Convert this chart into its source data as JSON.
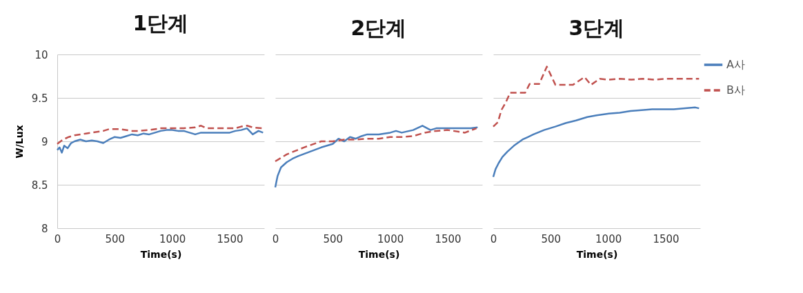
{
  "chart_data": [
    {
      "type": "line",
      "title": "1단계",
      "xlabel": "Time(s)",
      "ylabel": "W/Lux",
      "xlim": [
        0,
        1800
      ],
      "xticks": [
        0,
        500,
        1000,
        1500
      ],
      "ylim": [
        8,
        10
      ],
      "yticks": [
        8,
        8.5,
        9,
        9.5,
        10
      ],
      "grid": "y",
      "series": [
        {
          "color": "#4a7ebb",
          "line_style": "solid",
          "x": [
            0,
            20,
            40,
            60,
            90,
            120,
            150,
            200,
            250,
            300,
            350,
            400,
            450,
            500,
            550,
            600,
            650,
            700,
            750,
            800,
            850,
            900,
            950,
            1000,
            1050,
            1100,
            1150,
            1200,
            1250,
            1300,
            1400,
            1500,
            1550,
            1600,
            1650,
            1700,
            1750,
            1790
          ],
          "values": [
            8.9,
            8.93,
            8.87,
            8.95,
            8.92,
            8.98,
            9.0,
            9.02,
            9.0,
            9.01,
            9.0,
            8.98,
            9.02,
            9.05,
            9.04,
            9.06,
            9.08,
            9.07,
            9.09,
            9.08,
            9.1,
            9.12,
            9.13,
            9.13,
            9.12,
            9.12,
            9.1,
            9.08,
            9.1,
            9.1,
            9.1,
            9.1,
            9.12,
            9.13,
            9.15,
            9.08,
            9.12,
            9.1
          ]
        },
        {
          "color": "#c0504d",
          "line_style": "dashed",
          "x": [
            0,
            50,
            100,
            150,
            200,
            250,
            300,
            400,
            450,
            550,
            650,
            700,
            800,
            900,
            1000,
            1100,
            1200,
            1250,
            1300,
            1400,
            1500,
            1550,
            1600,
            1650,
            1700,
            1790
          ],
          "values": [
            8.97,
            9.02,
            9.05,
            9.07,
            9.08,
            9.09,
            9.1,
            9.12,
            9.14,
            9.14,
            9.12,
            9.12,
            9.13,
            9.15,
            9.15,
            9.15,
            9.16,
            9.18,
            9.15,
            9.15,
            9.15,
            9.15,
            9.17,
            9.18,
            9.16,
            9.15
          ]
        }
      ]
    },
    {
      "type": "line",
      "title": "2단계",
      "xlabel": "Time(s)",
      "xlim": [
        0,
        1800
      ],
      "xticks": [
        0,
        500,
        1000,
        1500
      ],
      "ylim": [
        8,
        10
      ],
      "yticks": [
        8,
        8.5,
        9,
        9.5,
        10
      ],
      "grid": "y",
      "tick_labels": "x",
      "series": [
        {
          "color": "#4a7ebb",
          "line_style": "solid",
          "x": [
            0,
            20,
            50,
            100,
            150,
            200,
            300,
            400,
            450,
            500,
            550,
            600,
            650,
            700,
            750,
            800,
            900,
            1000,
            1050,
            1100,
            1200,
            1280,
            1350,
            1400,
            1500,
            1600,
            1700,
            1760
          ],
          "values": [
            8.47,
            8.6,
            8.7,
            8.76,
            8.8,
            8.83,
            8.88,
            8.93,
            8.95,
            8.97,
            9.03,
            9.0,
            9.05,
            9.03,
            9.06,
            9.08,
            9.08,
            9.1,
            9.12,
            9.1,
            9.13,
            9.18,
            9.13,
            9.15,
            9.15,
            9.15,
            9.15,
            9.16
          ]
        },
        {
          "color": "#c0504d",
          "line_style": "dashed",
          "x": [
            0,
            100,
            250,
            400,
            500,
            600,
            700,
            800,
            900,
            1000,
            1100,
            1200,
            1250,
            1300,
            1400,
            1500,
            1550,
            1650,
            1750
          ],
          "values": [
            8.77,
            8.85,
            8.93,
            9.0,
            9.0,
            9.02,
            9.02,
            9.03,
            9.03,
            9.05,
            9.05,
            9.06,
            9.08,
            9.1,
            9.12,
            9.13,
            9.12,
            9.1,
            9.15
          ]
        }
      ]
    },
    {
      "type": "line",
      "title": "3단계",
      "xlabel": "Time(s)",
      "xlim": [
        0,
        1800
      ],
      "xticks": [
        0,
        500,
        1000,
        1500
      ],
      "ylim": [
        8,
        10
      ],
      "yticks": [
        8,
        8.5,
        9,
        9.5,
        10
      ],
      "grid": "y",
      "tick_labels": "x",
      "legend": "right",
      "series": [
        {
          "name": "A사",
          "color": "#4a7ebb",
          "line_style": "solid",
          "x": [
            0,
            20,
            47,
            80,
            122,
            180,
            254,
            350,
            442,
            540,
            630,
            720,
            818,
            900,
            1006,
            1100,
            1194,
            1290,
            1382,
            1480,
            1570,
            1670,
            1758,
            1790
          ],
          "values": [
            8.59,
            8.68,
            8.75,
            8.82,
            8.88,
            8.95,
            9.02,
            9.08,
            9.13,
            9.17,
            9.21,
            9.24,
            9.28,
            9.3,
            9.32,
            9.33,
            9.35,
            9.36,
            9.37,
            9.37,
            9.37,
            9.38,
            9.39,
            9.38
          ]
        },
        {
          "name": "B사",
          "color": "#c0504d",
          "line_style": "dashed",
          "x": [
            0,
            40,
            71,
            110,
            147,
            200,
            278,
            316,
            400,
            466,
            541,
            600,
            692,
            794,
            850,
            925,
            1000,
            1100,
            1200,
            1300,
            1400,
            1500,
            1600,
            1700,
            1790
          ],
          "values": [
            9.17,
            9.22,
            9.36,
            9.45,
            9.56,
            9.56,
            9.56,
            9.66,
            9.66,
            9.86,
            9.65,
            9.65,
            9.65,
            9.74,
            9.65,
            9.72,
            9.71,
            9.72,
            9.71,
            9.72,
            9.71,
            9.72,
            9.72,
            9.72,
            9.72
          ]
        }
      ]
    }
  ]
}
